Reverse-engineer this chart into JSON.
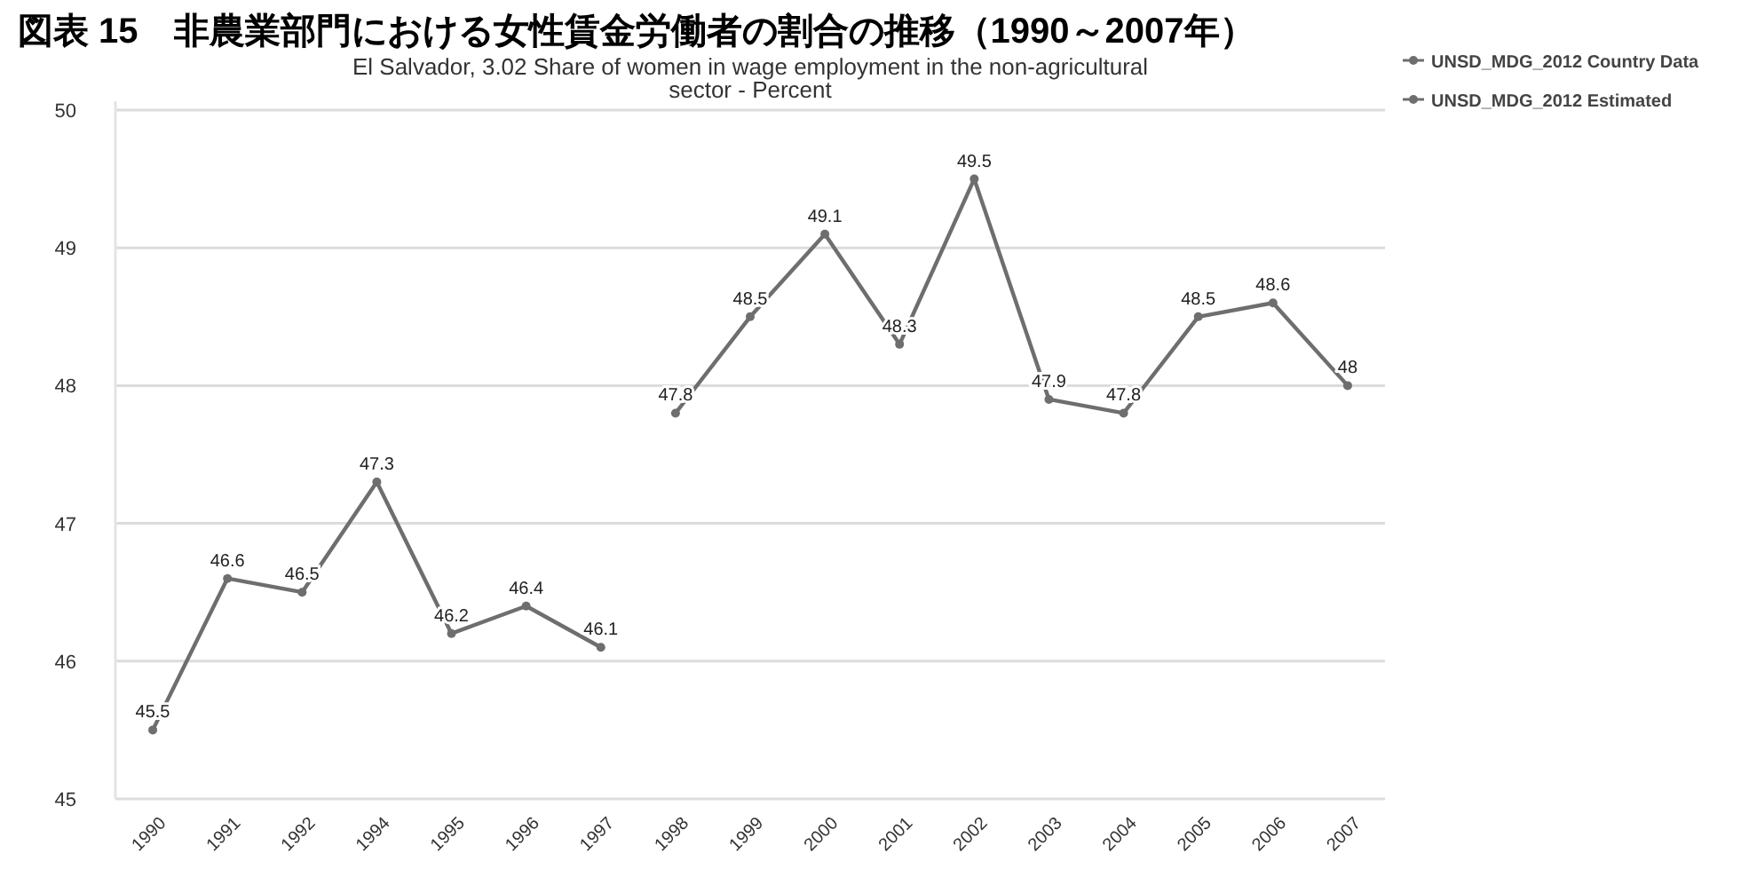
{
  "chart_data": {
    "type": "line",
    "title": "El Salvador, 3.02 Share of women in wage employment in the non-agricultural sector - Percent",
    "subtitle": "図表 15　非農業部門における女性賃金労働者の割合の推移（1990～2007年）",
    "categories": [
      "1990",
      "1991",
      "1992",
      "1994",
      "1995",
      "1996",
      "1997",
      "1998",
      "1999",
      "2000",
      "2001",
      "2002",
      "2003",
      "2004",
      "2005",
      "2006",
      "2007"
    ],
    "series": [
      {
        "name": "UNSD_MDG_2012 Country Data",
        "color": "#6e6e6e",
        "values": [
          45.5,
          46.6,
          46.5,
          47.3,
          46.2,
          46.4,
          46.1,
          null,
          null,
          null,
          null,
          null,
          null,
          null,
          null,
          null,
          null
        ]
      },
      {
        "name": "UNSD_MDG_2012 Estimated",
        "color": "#6e6e6e",
        "values": [
          null,
          null,
          null,
          null,
          null,
          null,
          null,
          47.8,
          48.5,
          49.1,
          48.3,
          49.5,
          47.9,
          47.8,
          48.5,
          48.6,
          48
        ]
      }
    ],
    "ylim": [
      45,
      50
    ],
    "yticks": [
      45,
      46,
      47,
      48,
      49,
      50
    ],
    "grid": "y",
    "legend": "top right",
    "marker": "circle",
    "line_style": "solid",
    "data_labels": true
  }
}
